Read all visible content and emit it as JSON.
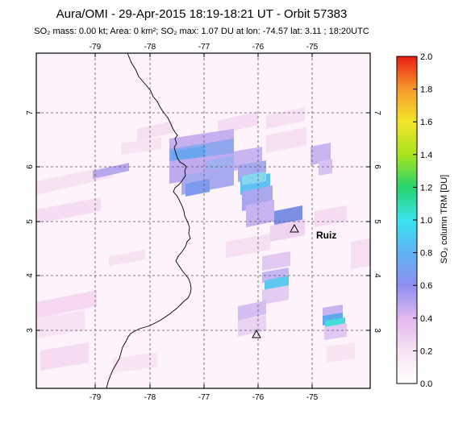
{
  "title": "Aura/OMI - 29-Apr-2015 18:19-18:21 UT - Orbit 57383",
  "subtitle": "SO₂ mass: 0.00 kt; Area: 0 km²; SO₂ max: 1.07 DU at lon: -74.57 lat: 3.11 ; 18:20UTC",
  "map": {
    "lon_ticks": [
      "-79",
      "-78",
      "-77",
      "-76",
      "-75"
    ],
    "lat_ticks": [
      "7",
      "6",
      "5",
      "4",
      "3"
    ],
    "volcano_label": "Ruiz",
    "grid": "dashed"
  },
  "colorbar": {
    "label": "SO₂ column TRM [DU]",
    "ticks": [
      "2.0",
      "1.8",
      "1.6",
      "1.4",
      "1.2",
      "1.0",
      "0.8",
      "0.6",
      "0.4",
      "0.2",
      "0.0"
    ],
    "range": [
      0.0,
      2.0
    ]
  },
  "colors": {
    "frame": "#000000",
    "grid": "#555555",
    "background": "#fdf3fa"
  }
}
